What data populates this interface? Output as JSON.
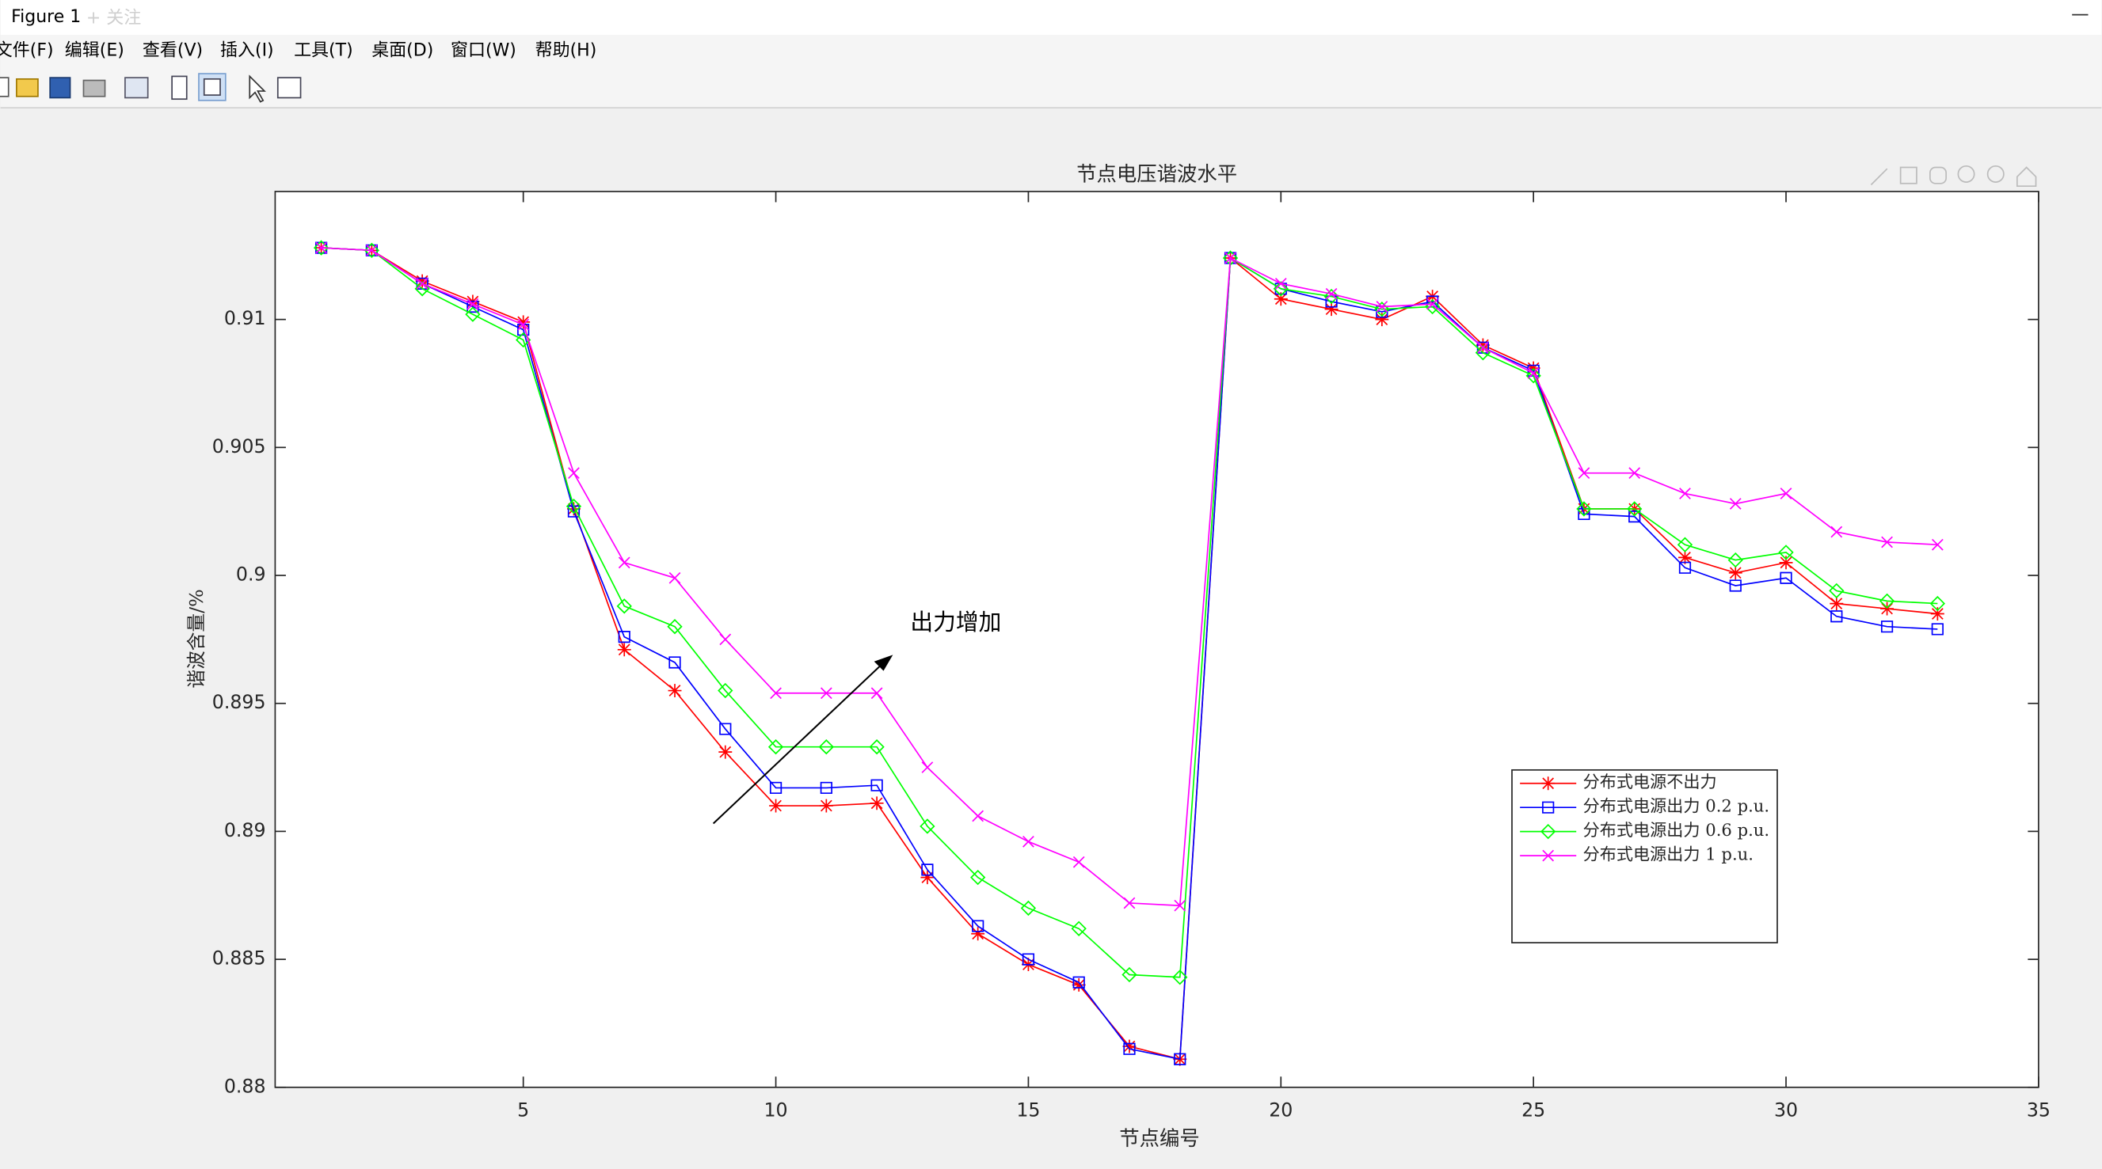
{
  "window": {
    "title": "Figure 1",
    "follow": "+ 关注",
    "menu": [
      "文件(F)",
      "编辑(E)",
      "查看(V)",
      "插入(I)",
      "工具(T)",
      "桌面(D)",
      "窗口(W)",
      "帮助(H)"
    ]
  },
  "chart_data": {
    "type": "line",
    "title": "节点电压谐波水平",
    "x_label": "节点编号",
    "y_label": "谐波含量/%",
    "annotation": "出力增加",
    "x": [
      1,
      2,
      3,
      4,
      5,
      6,
      7,
      8,
      9,
      10,
      11,
      12,
      13,
      14,
      15,
      16,
      17,
      18,
      19,
      20,
      21,
      22,
      23,
      24,
      25,
      26,
      27,
      28,
      29,
      30,
      31,
      32,
      33
    ],
    "xlim": [
      0,
      35
    ],
    "xticks": [
      5,
      10,
      15,
      20,
      25,
      30,
      35
    ],
    "ylim": [
      0.88,
      0.915
    ],
    "yticks": [
      0.88,
      0.885,
      0.89,
      0.895,
      0.9,
      0.905,
      0.91
    ],
    "grid": false,
    "series": [
      {
        "name": "分布式电源不出力",
        "color": "#ff0000",
        "marker": "asterisk",
        "values": [
          0.9128,
          0.9127,
          0.9115,
          0.9107,
          0.9099,
          0.9026,
          0.8971,
          0.8955,
          0.8931,
          0.891,
          0.891,
          0.8911,
          0.8882,
          0.886,
          0.8848,
          0.884,
          0.8816,
          0.8811,
          0.9124,
          0.9108,
          0.9104,
          0.91,
          0.9109,
          0.909,
          0.9081,
          0.9026,
          0.9026,
          0.9007,
          0.9001,
          0.9005,
          0.8989,
          0.8987,
          0.8985
        ]
      },
      {
        "name": "分布式电源出力 0.2 p.u.",
        "color": "#0000ff",
        "marker": "square",
        "values": [
          0.9128,
          0.9127,
          0.9114,
          0.9105,
          0.9096,
          0.9025,
          0.8976,
          0.8966,
          0.894,
          0.8917,
          0.8917,
          0.8918,
          0.8885,
          0.8863,
          0.885,
          0.8841,
          0.8815,
          0.8811,
          0.9124,
          0.9112,
          0.9107,
          0.9103,
          0.9107,
          0.9089,
          0.908,
          0.9024,
          0.9023,
          0.9003,
          0.8996,
          0.8999,
          0.8984,
          0.898,
          0.8979
        ]
      },
      {
        "name": "分布式电源出力 0.6 p.u.",
        "color": "#00ff00",
        "marker": "diamond",
        "values": [
          0.9128,
          0.9127,
          0.9112,
          0.9102,
          0.9092,
          0.9027,
          0.8988,
          0.898,
          0.8955,
          0.8933,
          0.8933,
          0.8933,
          0.8902,
          0.8882,
          0.887,
          0.8862,
          0.8844,
          0.8843,
          0.9124,
          0.9112,
          0.9109,
          0.9104,
          0.9105,
          0.9087,
          0.9078,
          0.9026,
          0.9026,
          0.9012,
          0.9006,
          0.9009,
          0.8994,
          0.899,
          0.8989
        ]
      },
      {
        "name": "分布式电源出力 1 p.u.",
        "color": "#ff00ff",
        "marker": "x",
        "values": [
          0.9128,
          0.9127,
          0.9114,
          0.9106,
          0.9098,
          0.904,
          0.9005,
          0.8999,
          0.8975,
          0.8954,
          0.8954,
          0.8954,
          0.8925,
          0.8906,
          0.8896,
          0.8888,
          0.8872,
          0.8871,
          0.9124,
          0.9114,
          0.911,
          0.9105,
          0.9106,
          0.9089,
          0.9079,
          0.904,
          0.904,
          0.9032,
          0.9028,
          0.9032,
          0.9017,
          0.9013,
          0.9012
        ]
      }
    ]
  }
}
